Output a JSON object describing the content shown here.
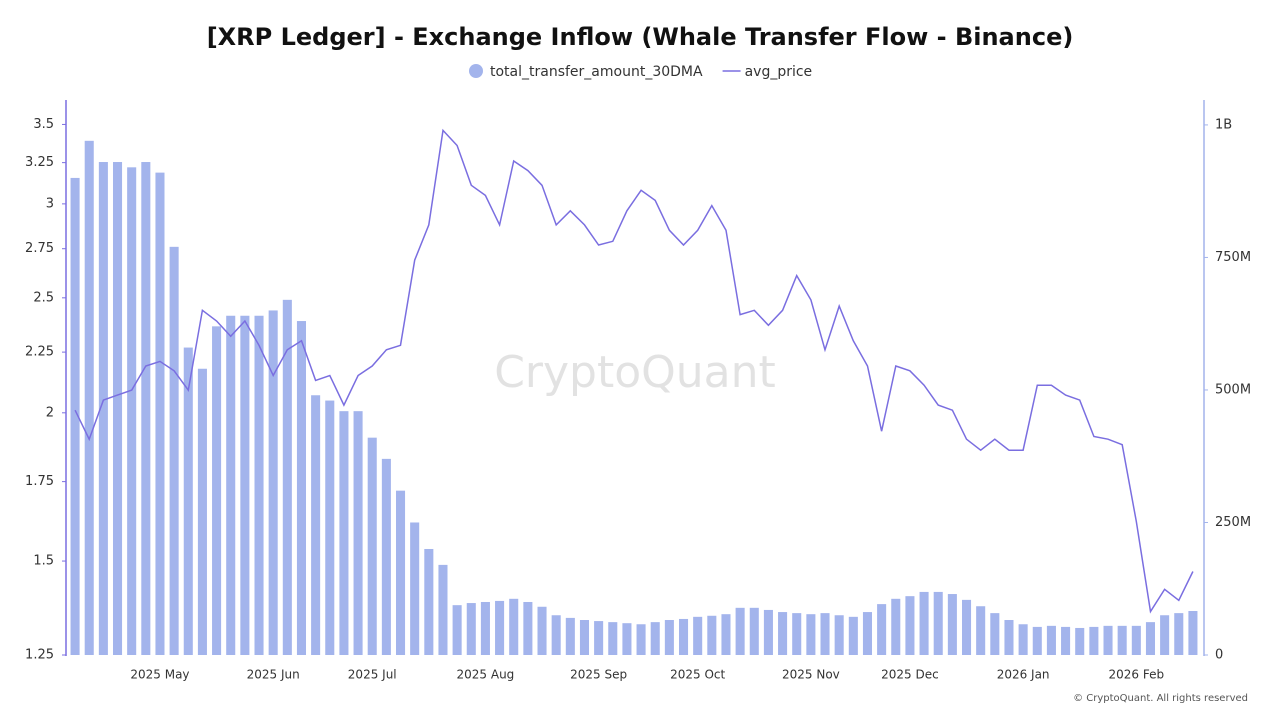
{
  "chart_data": {
    "type": "combo",
    "title": "[XRP Ledger] - Exchange Inflow (Whale Transfer Flow - Binance)",
    "watermark": "CryptoQuant",
    "footer": "© CryptoQuant. All rights reserved",
    "categories": [
      null,
      null,
      null,
      null,
      null,
      null,
      "2025 May",
      null,
      null,
      null,
      null,
      null,
      null,
      null,
      "2025 Jun",
      null,
      null,
      null,
      null,
      null,
      null,
      "2025 Jul",
      null,
      null,
      null,
      null,
      null,
      null,
      null,
      "2025 Aug",
      null,
      null,
      null,
      null,
      null,
      null,
      null,
      "2025 Sep",
      null,
      null,
      null,
      null,
      null,
      null,
      "2025 Oct",
      null,
      null,
      null,
      null,
      null,
      null,
      null,
      "2025 Nov",
      null,
      null,
      null,
      null,
      null,
      null,
      "2025 Dec",
      null,
      null,
      null,
      null,
      null,
      null,
      null,
      "2026 Jan",
      null,
      null,
      null,
      null,
      null,
      null,
      null,
      "2026 Feb",
      null,
      null,
      null,
      null
    ],
    "series": [
      {
        "name": "total_transfer_amount_30DMA",
        "type": "bar",
        "axis": "y2",
        "color": "#a3b4ec",
        "values": [
          900000000,
          970000000,
          930000000,
          930000000,
          920000000,
          930000000,
          910000000,
          770000000,
          580000000,
          540000000,
          620000000,
          640000000,
          640000000,
          640000000,
          650000000,
          670000000,
          630000000,
          490000000,
          480000000,
          460000000,
          460000000,
          410000000,
          370000000,
          310000000,
          250000000,
          200000000,
          170000000,
          94000000,
          98000000,
          100000000,
          102000000,
          106000000,
          100000000,
          91000000,
          75000000,
          70000000,
          66000000,
          64000000,
          62000000,
          60000000,
          58000000,
          62000000,
          66000000,
          68000000,
          72000000,
          74000000,
          77000000,
          89000000,
          89000000,
          85000000,
          81000000,
          79000000,
          77000000,
          79000000,
          75000000,
          72000000,
          81000000,
          96000000,
          106000000,
          111000000,
          119000000,
          119000000,
          115000000,
          104000000,
          92000000,
          79000000,
          66000000,
          58000000,
          53000000,
          55000000,
          53000000,
          51000000,
          53000000,
          55000000,
          55000000,
          55000000,
          62000000,
          75000000,
          79000000,
          83000000
        ]
      },
      {
        "name": "avg_price",
        "type": "line",
        "axis": "y",
        "color": "#7a6ee0",
        "values": [
          2.01,
          1.9,
          2.05,
          2.07,
          2.09,
          2.19,
          2.21,
          2.17,
          2.09,
          2.44,
          2.39,
          2.32,
          2.39,
          2.28,
          2.15,
          2.26,
          2.3,
          2.13,
          2.15,
          2.03,
          2.15,
          2.19,
          2.26,
          2.28,
          2.69,
          2.88,
          3.46,
          3.36,
          3.11,
          3.05,
          2.88,
          3.26,
          3.2,
          3.11,
          2.88,
          2.96,
          2.88,
          2.77,
          2.79,
          2.96,
          3.08,
          3.02,
          2.85,
          2.77,
          2.85,
          2.99,
          2.85,
          2.42,
          2.44,
          2.37,
          2.44,
          2.61,
          2.49,
          2.26,
          2.46,
          2.3,
          2.19,
          1.93,
          2.19,
          2.17,
          2.11,
          2.03,
          2.01,
          1.9,
          1.86,
          1.9,
          1.86,
          1.86,
          2.11,
          2.11,
          2.07,
          2.05,
          1.91,
          1.9,
          1.88,
          1.62,
          1.36,
          1.42,
          1.39,
          1.47
        ]
      }
    ],
    "ylim": [
      1.25,
      3.67
    ],
    "y_scale": "log",
    "yticks": [
      1.25,
      1.5,
      1.75,
      2,
      2.25,
      2.5,
      2.75,
      3,
      3.25,
      3.5
    ],
    "y2lim": [
      0,
      1047000000
    ],
    "y2ticks": [
      0,
      {
        "value": 250000000,
        "label": "250M"
      },
      {
        "value": 500000000,
        "label": "500M"
      },
      {
        "value": 750000000,
        "label": "750M"
      },
      {
        "value": 1000000000,
        "label": "1B"
      }
    ],
    "grid": false
  }
}
